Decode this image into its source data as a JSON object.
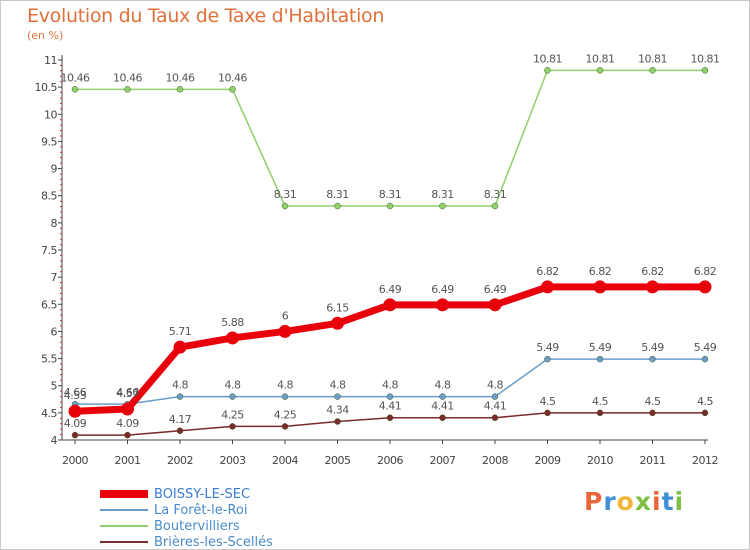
{
  "header": {
    "title": "Evolution du Taux de Taxe d'Habitation",
    "subtitle": "(en %)"
  },
  "logo": {
    "text": "Proxiti",
    "colors": [
      "#e8663a",
      "#3f8fd6",
      "#f2b636",
      "#7cc142",
      "#e8663a",
      "#3f8fd6",
      "#7cc142"
    ]
  },
  "chart_data": {
    "type": "line",
    "x": [
      2000,
      2001,
      2002,
      2003,
      2004,
      2005,
      2006,
      2007,
      2008,
      2009,
      2010,
      2011,
      2012
    ],
    "ylim": [
      4,
      11
    ],
    "yticks": [
      "4",
      "4.5",
      "5",
      "5.5",
      "6",
      "6.5",
      "7",
      "7.5",
      "8",
      "8.5",
      "9",
      "9.5",
      "10",
      "10.5",
      "11"
    ],
    "grid": false,
    "legend_position": "bottom-left",
    "series": [
      {
        "name": "BOISSY-LE-SEC",
        "color": "#e8000b",
        "values": [
          4.53,
          4.57,
          5.71,
          5.88,
          6,
          6.15,
          6.49,
          6.49,
          6.49,
          6.82,
          6.82,
          6.82,
          6.82
        ],
        "labels": [
          "4.53",
          "4.57",
          "5.71",
          "5.88",
          "6",
          "6.15",
          "6.49",
          "6.49",
          "6.49",
          "6.82",
          "6.82",
          "6.82",
          "6.82"
        ]
      },
      {
        "name": "La Forêt-le-Roi",
        "color": "#6a9ec9",
        "values": [
          4.66,
          4.66,
          4.8,
          4.8,
          4.8,
          4.8,
          4.8,
          4.8,
          4.8,
          5.49,
          5.49,
          5.49,
          5.49
        ],
        "labels": [
          "4.66",
          "4.66",
          "4.8",
          "4.8",
          "4.8",
          "4.8",
          "4.8",
          "4.8",
          "4.8",
          "5.49",
          "5.49",
          "5.49",
          "5.49"
        ]
      },
      {
        "name": "Boutervilliers",
        "color": "#8fd16b",
        "values": [
          10.46,
          10.46,
          10.46,
          10.46,
          8.31,
          8.31,
          8.31,
          8.31,
          8.31,
          10.81,
          10.81,
          10.81,
          10.81
        ],
        "labels": [
          "10.46",
          "10.46",
          "10.46",
          "10.46",
          "8.31",
          "8.31",
          "8.31",
          "8.31",
          "8.31",
          "10.81",
          "10.81",
          "10.81",
          "10.81"
        ]
      },
      {
        "name": "Brières-les-Scellés",
        "color": "#7a2a2a",
        "values": [
          4.09,
          4.09,
          4.17,
          4.25,
          4.25,
          4.34,
          4.41,
          4.41,
          4.41,
          4.5,
          4.5,
          4.5,
          4.5
        ],
        "labels": [
          "4.09",
          "4.09",
          "4.17",
          "4.25",
          "4.25",
          "4.34",
          "4.41",
          "4.41",
          "4.41",
          "4.5",
          "4.5",
          "4.5",
          "4.5"
        ]
      }
    ]
  }
}
